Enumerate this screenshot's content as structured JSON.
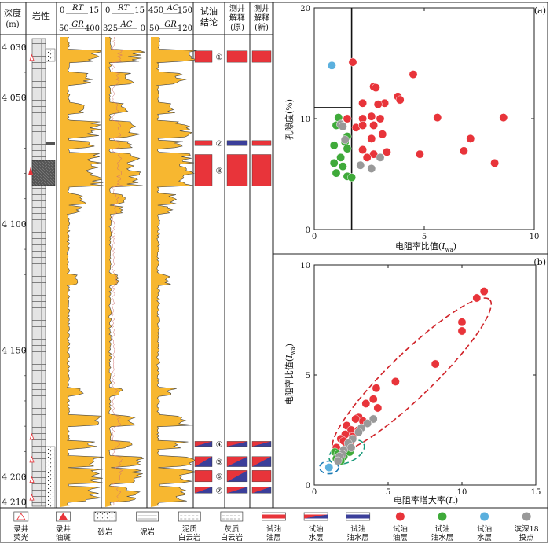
{
  "log_panel": {
    "headers": {
      "depth": "深度",
      "depth_unit": "(m)",
      "lithology": "岩性",
      "track1_top": "RT",
      "track1_top_min": "0",
      "track1_top_max": "15",
      "track1_bottom": "GR",
      "track1_bottom_min": "50",
      "track1_bottom_max": "400",
      "track2_top": "RT",
      "track2_top_min": "0",
      "track2_top_max": "15",
      "track2_bottom": "AC",
      "track2_bottom_min": "325",
      "track2_bottom_max": "0",
      "track3_top": "AC",
      "track3_top_min": "450",
      "track3_top_max": "150",
      "track3_bottom": "GR",
      "track3_bottom_min": "50",
      "track3_bottom_max": "120",
      "test_conclusion_1": "试油",
      "test_conclusion_2": "结论",
      "interp_old_1": "测井",
      "interp_old_2": "解释",
      "interp_old_3": "(原)",
      "interp_new_1": "测井",
      "interp_new_2": "解释",
      "interp_new_3": "(新)"
    },
    "depth_labels": [
      "4 030",
      "4 050",
      "4 100",
      "4 150",
      "4 200",
      "4 210"
    ],
    "depth_values": [
      4030,
      4050,
      4100,
      4150,
      4200,
      4210
    ],
    "depth_range": [
      4026,
      4212
    ],
    "layers": [
      {
        "label": "①",
        "top": 4031.5,
        "bottom": 4036,
        "conclusion": "oil",
        "old": "oil",
        "new": "oil"
      },
      {
        "label": "②",
        "top": 4067,
        "bottom": 4069,
        "conclusion": "oil",
        "old": "water",
        "new": "oil"
      },
      {
        "label": "③",
        "top": 4072.5,
        "bottom": 4085,
        "conclusion": "oil",
        "old": "oil",
        "new": "oil"
      },
      {
        "label": "④",
        "top": 4186,
        "bottom": 4188,
        "conclusion": "oilwater",
        "old": "oilwater",
        "new": "oilwater"
      },
      {
        "label": "⑤",
        "top": 4192,
        "bottom": 4196,
        "conclusion": "oilwater_water",
        "old": "oilwater",
        "new": "oilwater_water"
      },
      {
        "label": "⑥",
        "top": 4197.5,
        "bottom": 4202,
        "conclusion": "oil",
        "old": "oilwater",
        "new": "oil"
      },
      {
        "label": "⑦",
        "top": 4204,
        "bottom": 4206.5,
        "conclusion": "oilwater_water",
        "old": "oilwater",
        "new": "oilwater_water"
      }
    ],
    "colors": {
      "oil": "#e8343a",
      "water": "#3b3f9a",
      "fill": "#f7b730",
      "curve": "#444444",
      "ac": "#d07070"
    }
  },
  "legend": [
    {
      "icon": "outline-triangle",
      "label1": "录井",
      "label2": "荧光"
    },
    {
      "icon": "red-triangle",
      "label1": "录井",
      "label2": "油斑"
    },
    {
      "icon": "sandstone",
      "label1": "砂岩",
      "label2": ""
    },
    {
      "icon": "mudstone",
      "label1": "泥岩",
      "label2": ""
    },
    {
      "icon": "muddy-dolomite",
      "label1": "泥质",
      "label2": "白云岩"
    },
    {
      "icon": "limy-dolomite",
      "label1": "灰质",
      "label2": "白云岩"
    },
    {
      "icon": "oil-bar",
      "label1": "试油",
      "label2": "油层"
    },
    {
      "icon": "water-bar",
      "label1": "试油",
      "label2": "水层"
    },
    {
      "icon": "oilwater-bar",
      "label1": "试油",
      "label2": "油水层"
    },
    {
      "icon": "red-dot",
      "label1": "试油",
      "label2": "油层"
    },
    {
      "icon": "green-dot",
      "label1": "试油",
      "label2": "油水层"
    },
    {
      "icon": "blue-dot",
      "label1": "试油",
      "label2": "水层"
    },
    {
      "icon": "gray-dot",
      "label1": "滨深18",
      "label2": "投点"
    }
  ],
  "chart_data": [
    {
      "type": "scatter",
      "panel_label": "(a)",
      "xlabel": "电阻率比值(I_wa)",
      "xlabel_main": "电阻率比值(",
      "xlabel_sym": "I",
      "xlabel_sub": "wa",
      "xlabel_end": ")",
      "ylabel": "孔隙度(%)",
      "xlim": [
        0,
        10
      ],
      "ylim": [
        0,
        20
      ],
      "xticks": [
        "0",
        "5",
        "10"
      ],
      "yticks": [
        "0",
        "10",
        "20"
      ],
      "cutoffs": {
        "x": 1.7,
        "y": 11
      },
      "series": [
        {
          "name": "试油油层",
          "color": "#e8343a",
          "points": [
            [
              1.75,
              15.1
            ],
            [
              4.5,
              14
            ],
            [
              2.7,
              12.9
            ],
            [
              2.8,
              12.8
            ],
            [
              3.8,
              12
            ],
            [
              3.9,
              11.7
            ],
            [
              3.2,
              11.4
            ],
            [
              2.2,
              11.4
            ],
            [
              2.9,
              11.3
            ],
            [
              2.6,
              10.2
            ],
            [
              2.2,
              10
            ],
            [
              3,
              10
            ],
            [
              1.5,
              10
            ],
            [
              5.6,
              10.1
            ],
            [
              8.6,
              10.1
            ],
            [
              1.9,
              9.2
            ],
            [
              2.2,
              9.4
            ],
            [
              2.7,
              9.4
            ],
            [
              3.1,
              8.6
            ],
            [
              2.6,
              8.2
            ],
            [
              7.1,
              8.2
            ],
            [
              2.2,
              7.2
            ],
            [
              6.8,
              7.1
            ],
            [
              3.3,
              7
            ],
            [
              4.8,
              6.8
            ],
            [
              2.7,
              6.8
            ],
            [
              2.4,
              6.5
            ],
            [
              8.2,
              6
            ]
          ]
        },
        {
          "name": "试油油水层",
          "color": "#3faa3a",
          "points": [
            [
              1.1,
              10.1
            ],
            [
              1,
              9.4
            ],
            [
              1.5,
              8.4
            ],
            [
              1.4,
              7.9
            ],
            [
              0.9,
              7.6
            ],
            [
              1.5,
              7.3
            ],
            [
              1.2,
              6.5
            ],
            [
              0.9,
              6
            ],
            [
              1.3,
              5.7
            ],
            [
              1,
              5.1
            ],
            [
              1.5,
              4.8
            ],
            [
              1.7,
              4.7
            ]
          ]
        },
        {
          "name": "试油水层",
          "color": "#5bb0de",
          "points": [
            [
              0.8,
              14.8
            ]
          ]
        },
        {
          "name": "滨深18投点",
          "color": "#999999",
          "points": [
            [
              1.2,
              9.5
            ],
            [
              1.3,
              9.3
            ],
            [
              1.4,
              8.1
            ],
            [
              3.0,
              6.5
            ],
            [
              2.1,
              5.8
            ],
            [
              2.6,
              5.5
            ]
          ]
        }
      ]
    },
    {
      "type": "scatter",
      "panel_label": "(b)",
      "xlabel": "电阻率增大率(I_r)",
      "xlabel_main": "电阻率增大率(",
      "xlabel_sym": "I",
      "xlabel_sub": "r",
      "xlabel_end": ")",
      "ylabel": "电阻率比值(I_wa)",
      "ylabel_main": "电阻率比值(",
      "ylabel_sym": "I",
      "ylabel_sub": "wa",
      "ylabel_end": ")",
      "xlim": [
        0,
        15
      ],
      "ylim": [
        0,
        10
      ],
      "xticks": [
        "0",
        "5",
        "10",
        "15"
      ],
      "yticks": [
        "0",
        "5",
        "10"
      ],
      "series": [
        {
          "name": "试油油层",
          "color": "#e8343a",
          "points": [
            [
              11.5,
              8.8
            ],
            [
              11,
              8.5
            ],
            [
              10,
              7.4
            ],
            [
              10,
              7
            ],
            [
              8.2,
              5.5
            ],
            [
              5.5,
              4.7
            ],
            [
              4.2,
              4.4
            ],
            [
              4,
              3.9
            ],
            [
              3.5,
              3.7
            ],
            [
              4.3,
              3.5
            ],
            [
              3,
              3.1
            ],
            [
              2.8,
              3
            ],
            [
              3.3,
              2.9
            ],
            [
              2.2,
              2.7
            ],
            [
              2.5,
              2.5
            ],
            [
              3,
              2.5
            ],
            [
              2.1,
              2.3
            ],
            [
              2.6,
              2.2
            ],
            [
              1.8,
              2.1
            ],
            [
              2,
              2
            ],
            [
              2.5,
              2
            ],
            [
              2.2,
              1.8
            ],
            [
              1.5,
              1.7
            ]
          ]
        },
        {
          "name": "试油油水层",
          "color": "#3faa3a",
          "points": [
            [
              1.4,
              1.5
            ],
            [
              1.6,
              1.4
            ],
            [
              1.5,
              1.2
            ],
            [
              2,
              1.3
            ],
            [
              1.8,
              1.1
            ],
            [
              2.1,
              1.6
            ],
            [
              2.4,
              1.5
            ]
          ]
        },
        {
          "name": "试油水层",
          "color": "#5bb0de",
          "points": [
            [
              1,
              0.8
            ]
          ]
        },
        {
          "name": "滨深18投点",
          "color": "#999999",
          "points": [
            [
              4,
              3
            ],
            [
              3.6,
              2.8
            ],
            [
              3.2,
              2.6
            ],
            [
              3,
              2.4
            ],
            [
              2.6,
              2.1
            ],
            [
              2.3,
              1.9
            ],
            [
              2,
              1.6
            ],
            [
              1.9,
              1.4
            ],
            [
              1.7,
              1.3
            ],
            [
              2.5,
              1.7
            ],
            [
              1.6,
              1.1
            ]
          ]
        }
      ]
    }
  ]
}
